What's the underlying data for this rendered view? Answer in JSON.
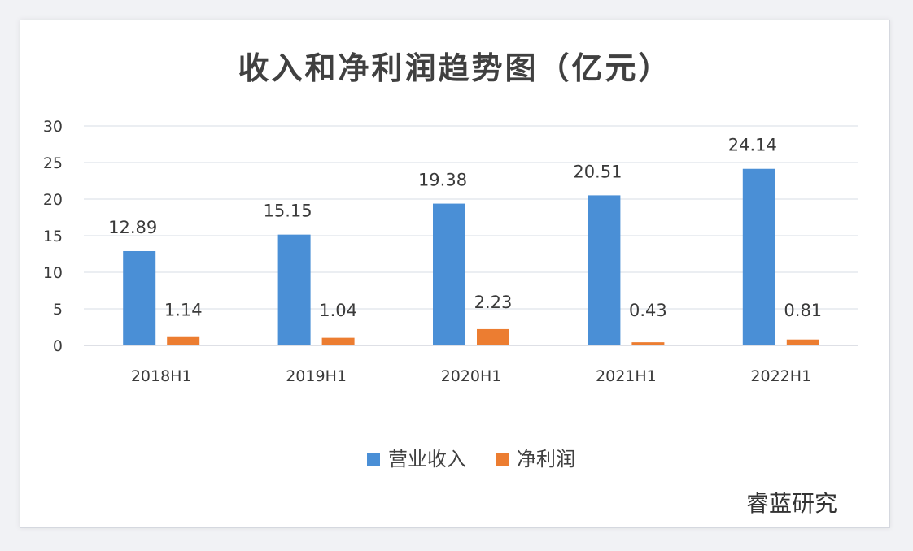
{
  "chart_data": {
    "type": "bar",
    "title": "收入和净利润趋势图（亿元）",
    "categories": [
      "2018H1",
      "2019H1",
      "2020H1",
      "2021H1",
      "2022H1"
    ],
    "series": [
      {
        "name": "营业收入",
        "values": [
          12.89,
          15.15,
          19.38,
          20.51,
          24.14
        ],
        "color": "#4a8fd6"
      },
      {
        "name": "净利润",
        "values": [
          1.14,
          1.04,
          2.23,
          0.43,
          0.81
        ],
        "color": "#ec7d31"
      }
    ],
    "data_labels": [
      [
        "12.89",
        "15.15",
        "19.38",
        "20.51",
        "24.14"
      ],
      [
        "1.14",
        "1.04",
        "2.23",
        "0.43",
        "0.81"
      ]
    ],
    "ylim": [
      0,
      30
    ],
    "yticks": [
      0,
      5,
      10,
      15,
      20,
      25,
      30
    ],
    "grid": true,
    "legend_position": "bottom",
    "xlabel": "",
    "ylabel": ""
  },
  "watermark": "睿蓝研究"
}
